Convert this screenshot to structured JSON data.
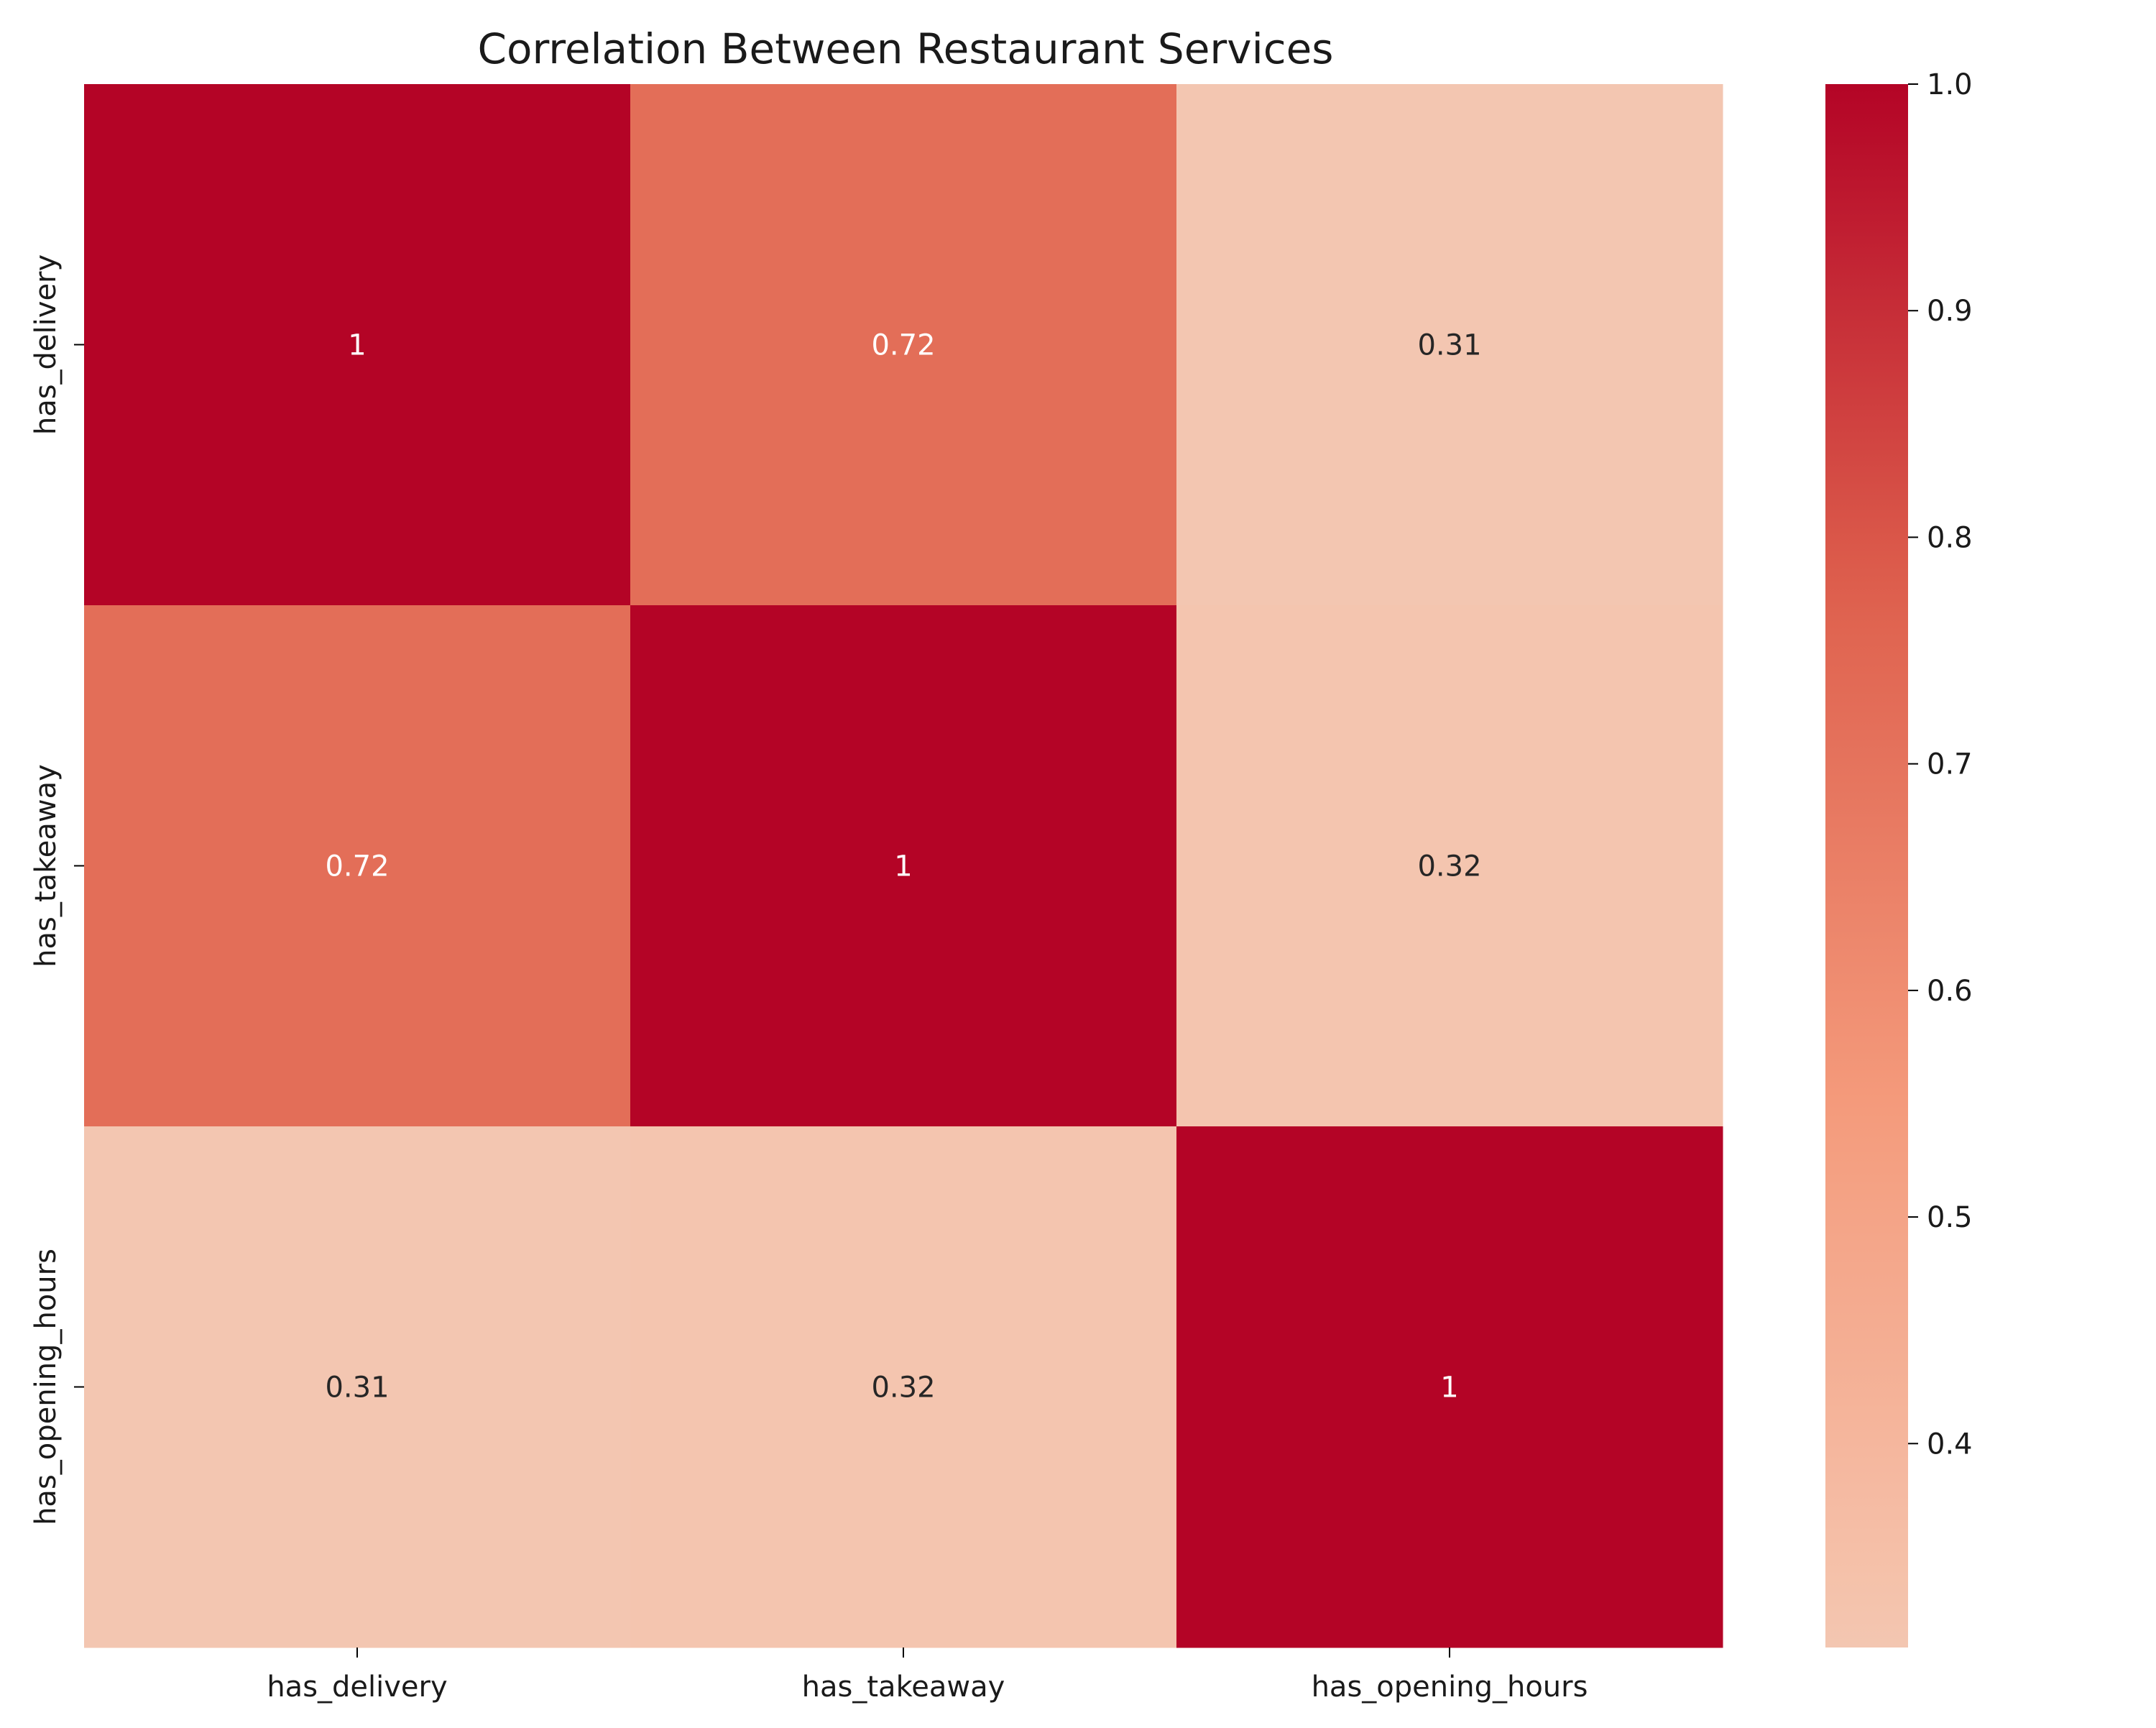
{
  "chart_data": {
    "type": "heatmap",
    "title": "Correlation Between Restaurant Services",
    "xlabel": "",
    "ylabel": "",
    "x_categories": [
      "has_delivery",
      "has_takeaway",
      "has_opening_hours"
    ],
    "y_categories": [
      "has_delivery",
      "has_takeaway",
      "has_opening_hours"
    ],
    "values": [
      [
        1.0,
        0.72,
        0.31
      ],
      [
        0.72,
        1.0,
        0.32
      ],
      [
        0.31,
        0.32,
        1.0
      ]
    ],
    "cell_labels": [
      [
        "1",
        "0.72",
        "0.31"
      ],
      [
        "0.72",
        "1",
        "0.32"
      ],
      [
        "0.31",
        "0.32",
        "1"
      ]
    ],
    "colormap": "coolwarm",
    "colorbar": {
      "range": [
        0.31,
        1.0
      ],
      "ticks": [
        0.4,
        0.5,
        0.6,
        0.7,
        0.8,
        0.9,
        1.0
      ],
      "tick_labels": [
        "0.4",
        "0.5",
        "0.6",
        "0.7",
        "0.8",
        "0.9",
        "1.0"
      ]
    },
    "legend": "colorbar-right",
    "grid": false
  }
}
